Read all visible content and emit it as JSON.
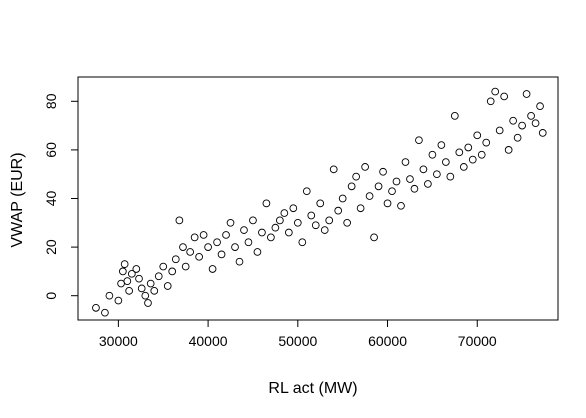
{
  "chart_data": {
    "type": "scatter",
    "title": "",
    "xlabel": "RL act (MW)",
    "ylabel": "VWAP (EUR)",
    "xlim": [
      25500,
      79000
    ],
    "ylim": [
      -10,
      90
    ],
    "x_ticks": [
      30000,
      40000,
      50000,
      60000,
      70000
    ],
    "y_ticks": [
      0,
      20,
      40,
      60,
      80
    ],
    "x_tick_labels": [
      "30000",
      "40000",
      "50000",
      "60000",
      "70000"
    ],
    "y_tick_labels": [
      "0",
      "20",
      "40",
      "60",
      "80"
    ],
    "marker": "open-circle",
    "grid": false,
    "legend": "none",
    "points": [
      [
        27500,
        -5
      ],
      [
        28500,
        -7
      ],
      [
        29000,
        0
      ],
      [
        30000,
        -2
      ],
      [
        30300,
        5
      ],
      [
        30500,
        10
      ],
      [
        30700,
        13
      ],
      [
        31000,
        6
      ],
      [
        31200,
        2
      ],
      [
        31500,
        9
      ],
      [
        32000,
        11
      ],
      [
        32300,
        7
      ],
      [
        32600,
        3
      ],
      [
        33000,
        0
      ],
      [
        33300,
        -3
      ],
      [
        33600,
        5
      ],
      [
        34000,
        2
      ],
      [
        34500,
        8
      ],
      [
        35000,
        12
      ],
      [
        35500,
        4
      ],
      [
        36000,
        10
      ],
      [
        36400,
        15
      ],
      [
        36800,
        31
      ],
      [
        37200,
        20
      ],
      [
        37500,
        12
      ],
      [
        38000,
        18
      ],
      [
        38500,
        24
      ],
      [
        39000,
        16
      ],
      [
        39500,
        25
      ],
      [
        40000,
        20
      ],
      [
        40500,
        11
      ],
      [
        41000,
        22
      ],
      [
        41500,
        17
      ],
      [
        42000,
        25
      ],
      [
        42500,
        30
      ],
      [
        43000,
        20
      ],
      [
        43500,
        14
      ],
      [
        44000,
        27
      ],
      [
        44500,
        22
      ],
      [
        45000,
        31
      ],
      [
        45500,
        18
      ],
      [
        46000,
        26
      ],
      [
        46500,
        38
      ],
      [
        47000,
        24
      ],
      [
        47500,
        28
      ],
      [
        48000,
        31
      ],
      [
        48500,
        34
      ],
      [
        49000,
        26
      ],
      [
        49500,
        36
      ],
      [
        50000,
        30
      ],
      [
        50500,
        22
      ],
      [
        51000,
        43
      ],
      [
        51500,
        33
      ],
      [
        52000,
        29
      ],
      [
        52500,
        38
      ],
      [
        53000,
        27
      ],
      [
        53500,
        31
      ],
      [
        54000,
        52
      ],
      [
        54500,
        35
      ],
      [
        55000,
        40
      ],
      [
        55500,
        30
      ],
      [
        56000,
        45
      ],
      [
        56500,
        49
      ],
      [
        57000,
        36
      ],
      [
        57500,
        53
      ],
      [
        58000,
        41
      ],
      [
        58500,
        24
      ],
      [
        59000,
        45
      ],
      [
        59500,
        51
      ],
      [
        60000,
        38
      ],
      [
        60500,
        43
      ],
      [
        61000,
        47
      ],
      [
        61500,
        37
      ],
      [
        62000,
        55
      ],
      [
        62500,
        48
      ],
      [
        63000,
        44
      ],
      [
        63500,
        64
      ],
      [
        64000,
        52
      ],
      [
        64500,
        46
      ],
      [
        65000,
        58
      ],
      [
        65500,
        50
      ],
      [
        66000,
        62
      ],
      [
        66500,
        55
      ],
      [
        67000,
        49
      ],
      [
        67500,
        74
      ],
      [
        68000,
        59
      ],
      [
        68500,
        53
      ],
      [
        69000,
        61
      ],
      [
        69500,
        56
      ],
      [
        70000,
        66
      ],
      [
        70500,
        58
      ],
      [
        71000,
        63
      ],
      [
        71500,
        80
      ],
      [
        72000,
        84
      ],
      [
        72500,
        68
      ],
      [
        73000,
        82
      ],
      [
        73500,
        60
      ],
      [
        74000,
        72
      ],
      [
        74500,
        65
      ],
      [
        75000,
        70
      ],
      [
        75500,
        83
      ],
      [
        76000,
        74
      ],
      [
        76500,
        71
      ],
      [
        77000,
        78
      ],
      [
        77300,
        67
      ]
    ]
  }
}
